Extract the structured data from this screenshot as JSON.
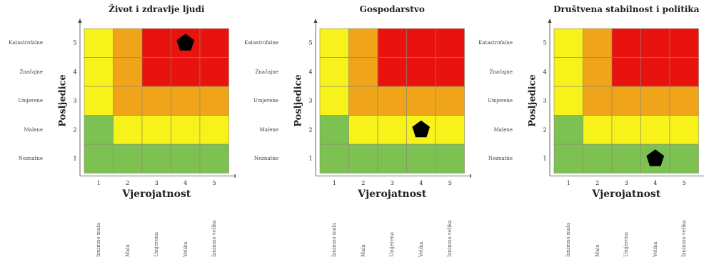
{
  "colors": {
    "green": "#7dc152",
    "yellow": "#f7f21a",
    "orange": "#efa419",
    "red": "#e8120e",
    "marker": "#000000"
  },
  "chart_data": [
    {
      "type": "heatmap",
      "title": "Život i zdravlje ljudi",
      "xlabel": "Vjerojatnost",
      "ylabel": "Posljedice",
      "x": [
        1,
        2,
        3,
        4,
        5
      ],
      "y": [
        1,
        2,
        3,
        4,
        5
      ],
      "x_tick_labels": [
        "Iznimno mala",
        "Mala",
        "Umjerena",
        "Velika",
        "Iznimno velika"
      ],
      "y_tick_labels": [
        "Neznatne",
        "Malene",
        "Umjerene",
        "Značajne",
        "Katastrofalne"
      ],
      "cells": [
        [
          "green",
          "green",
          "green",
          "green",
          "green"
        ],
        [
          "green",
          "yellow",
          "yellow",
          "yellow",
          "yellow"
        ],
        [
          "yellow",
          "orange",
          "orange",
          "orange",
          "orange"
        ],
        [
          "yellow",
          "orange",
          "red",
          "red",
          "red"
        ],
        [
          "yellow",
          "orange",
          "red",
          "red",
          "red"
        ]
      ],
      "marker": {
        "x": 4,
        "y": 5,
        "shape": "pentagon"
      }
    },
    {
      "type": "heatmap",
      "title": "Gospodarstvo",
      "xlabel": "Vjerojatnost",
      "ylabel": "Posljedice",
      "x": [
        1,
        2,
        3,
        4,
        5
      ],
      "y": [
        1,
        2,
        3,
        4,
        5
      ],
      "x_tick_labels": [
        "Iznimno mala",
        "Mala",
        "Umjerena",
        "Velika",
        "Iznimno velika"
      ],
      "y_tick_labels": [
        "Neznatne",
        "Malene",
        "Umjerene",
        "Značajne",
        "Katastrofalne"
      ],
      "cells": [
        [
          "green",
          "green",
          "green",
          "green",
          "green"
        ],
        [
          "green",
          "yellow",
          "yellow",
          "yellow",
          "yellow"
        ],
        [
          "yellow",
          "orange",
          "orange",
          "orange",
          "orange"
        ],
        [
          "yellow",
          "orange",
          "red",
          "red",
          "red"
        ],
        [
          "yellow",
          "orange",
          "red",
          "red",
          "red"
        ]
      ],
      "marker": {
        "x": 4,
        "y": 2,
        "shape": "pentagon"
      }
    },
    {
      "type": "heatmap",
      "title": "Društvena stabilnost i politika",
      "xlabel": "Vjerojatnost",
      "ylabel": "Posljedice",
      "x": [
        1,
        2,
        3,
        4,
        5
      ],
      "y": [
        1,
        2,
        3,
        4,
        5
      ],
      "x_tick_labels": [
        "Iznimno mala",
        "Mala",
        "Umjerena",
        "Velika",
        "Iznimno velika"
      ],
      "y_tick_labels": [
        "Neznatne",
        "Malene",
        "Umjerene",
        "Značajne",
        "Katastrofalne"
      ],
      "cells": [
        [
          "green",
          "green",
          "green",
          "green",
          "green"
        ],
        [
          "green",
          "yellow",
          "yellow",
          "yellow",
          "yellow"
        ],
        [
          "yellow",
          "orange",
          "orange",
          "orange",
          "orange"
        ],
        [
          "yellow",
          "orange",
          "red",
          "red",
          "red"
        ],
        [
          "yellow",
          "orange",
          "red",
          "red",
          "red"
        ]
      ],
      "marker": {
        "x": 4,
        "y": 1,
        "shape": "pentagon"
      }
    }
  ]
}
